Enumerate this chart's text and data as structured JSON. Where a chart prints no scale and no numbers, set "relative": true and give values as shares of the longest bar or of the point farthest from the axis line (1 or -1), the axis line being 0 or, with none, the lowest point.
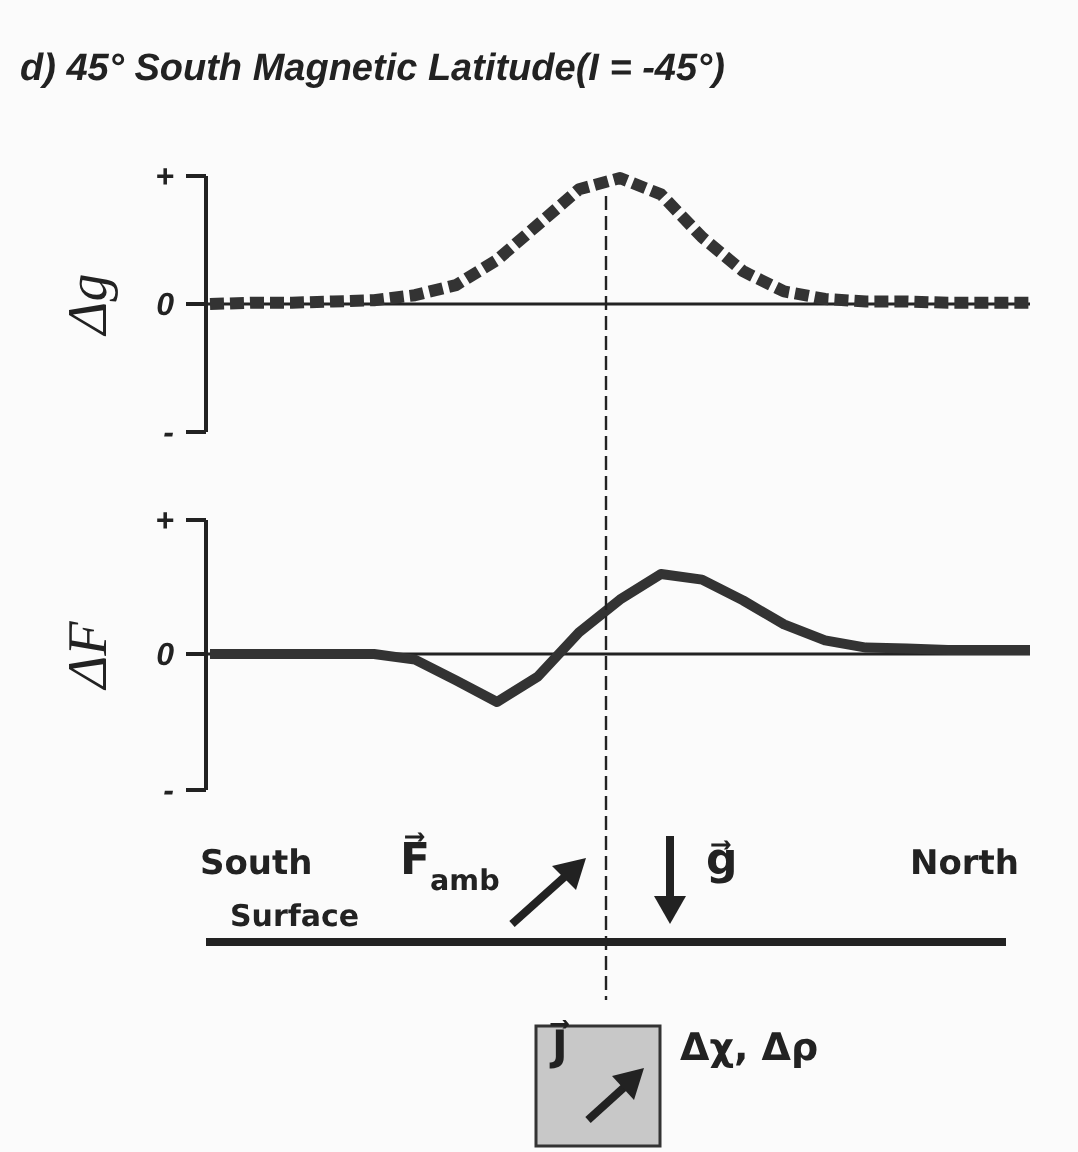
{
  "chart_data": [
    {
      "type": "line",
      "title": "d) 45° South Magnetic Latitude(I = -45°)",
      "ylabel": "Δg",
      "relative": true,
      "annotations": [
        "+",
        "0",
        "-"
      ],
      "categories": [
        null,
        null,
        null,
        null,
        null,
        null,
        null,
        null,
        null,
        null,
        null,
        null,
        null,
        null,
        null,
        null,
        null,
        null,
        null,
        null,
        null
      ],
      "series": [
        {
          "color": "#333333",
          "line_style": "dashed",
          "values": [
            0,
            0.01,
            0.01,
            0.02,
            0.03,
            0.07,
            0.15,
            0.35,
            0.63,
            0.91,
            1,
            0.87,
            0.53,
            0.26,
            0.1,
            0.04,
            0.02,
            0.02,
            0.01,
            0.01,
            0.01
          ]
        }
      ]
    },
    {
      "type": "line",
      "ylabel": "ΔF",
      "relative": true,
      "annotations": [
        "+",
        "0",
        "-"
      ],
      "categories": [
        null,
        null,
        null,
        null,
        null,
        null,
        null,
        null,
        null,
        null,
        null,
        null,
        null,
        null,
        null,
        null,
        null,
        null,
        null,
        null,
        null
      ],
      "series": [
        {
          "color": "#333333",
          "line_style": "solid",
          "values": [
            0,
            0,
            0,
            0,
            0,
            -0.07,
            -0.33,
            -0.6,
            -0.28,
            0.27,
            0.68,
            1,
            0.93,
            0.67,
            0.37,
            0.17,
            0.08,
            0.07,
            0.05,
            0.05,
            0.05
          ]
        }
      ]
    },
    {
      "type": "other",
      "annotations": [
        "South",
        "Surface",
        "F⃗$_{amb}$",
        "g⃗",
        "North",
        "J⃗",
        "Δχ, Δρ"
      ]
    }
  ]
}
